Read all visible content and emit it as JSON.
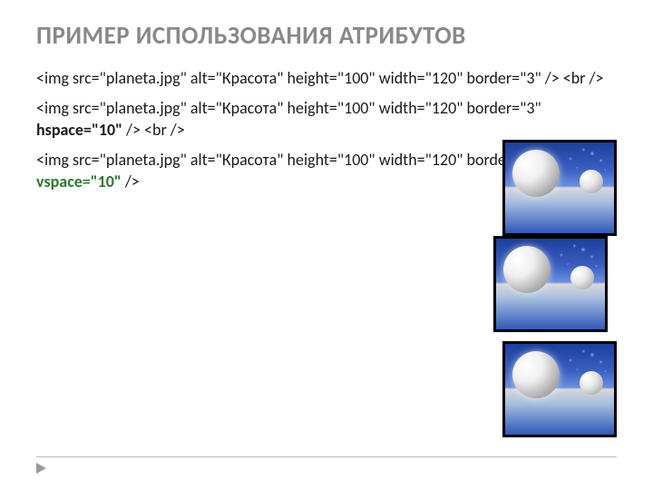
{
  "slide": {
    "title": "ПРИМЕР ИСПОЛЬЗОВАНИЯ АТРИБУТОВ",
    "lines": {
      "p1a": "<img src=\"planeta.jpg\" alt=\"Красота\" height=\"100\" width=\"120\" border=\"3\" />",
      "p1b": " <br />",
      "p2a": "<img src=\"planeta.jpg\" alt=\"Красота\" height=\"100\" width=\"120\" border=\"3\" ",
      "p2h": "hspace=\"10\"",
      "p2b": " /> <br />",
      "p3a": "<img src=\"planeta.jpg\" alt=\"Красота\" height=\"100\" width=\"120\" border=\"3\"  ",
      "p3v": "vspace=\"10\"",
      "p3b": "  />"
    }
  },
  "images": {
    "alt": "Красота",
    "width": 120,
    "height": 100,
    "border": 3,
    "hspace_demo": 10,
    "vspace_demo": 10
  },
  "style": {
    "title_color": "#898989",
    "title_fontsize": 27,
    "body_fontsize": 18,
    "body_color": "#1a1a1a",
    "highlight_green": "#2d7a2d",
    "background": "#ffffff",
    "footer_line_color": "#bcbcbc",
    "footer_arrow_color": "#9a9a9a",
    "slide_width": 720,
    "slide_height": 540
  }
}
